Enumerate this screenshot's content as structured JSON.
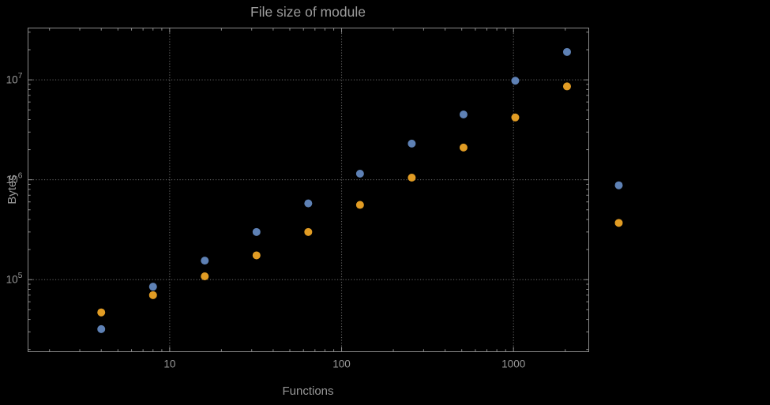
{
  "chart_data": {
    "type": "scatter",
    "title": "File size of module",
    "xlabel": "Functions",
    "ylabel": "Bytes",
    "x_scale": "log",
    "y_scale": "log",
    "grid": "dotted",
    "legend": "none",
    "x_range": [
      1.5,
      2740
    ],
    "y_range": [
      19000,
      33000000
    ],
    "x_ticks": [
      10,
      100,
      1000
    ],
    "x_tick_labels": [
      "10",
      "100",
      "1000"
    ],
    "y_ticks": [
      100000,
      1000000,
      10000000
    ],
    "y_tick_labels": [
      "10^5",
      "10^6",
      "10^7"
    ],
    "x": [
      4,
      8,
      16,
      32,
      64,
      128,
      256,
      512,
      1024,
      2048,
      4096
    ],
    "series": [
      {
        "name": "blue",
        "color": "#5E81B5",
        "values": [
          32000,
          85000,
          155000,
          300000,
          580000,
          1150000,
          2300000,
          4500000,
          9800000,
          19000000,
          880000
        ]
      },
      {
        "name": "orange",
        "color": "#E19C24",
        "values": [
          47000,
          70000,
          108000,
          175000,
          300000,
          560000,
          1050000,
          2100000,
          4200000,
          8600000,
          370000
        ]
      }
    ],
    "colors": {
      "background": "#000000",
      "frame": "#8a8a8a",
      "grid": "#5f5f5f",
      "text": "#979797"
    },
    "point_radius": 5
  }
}
